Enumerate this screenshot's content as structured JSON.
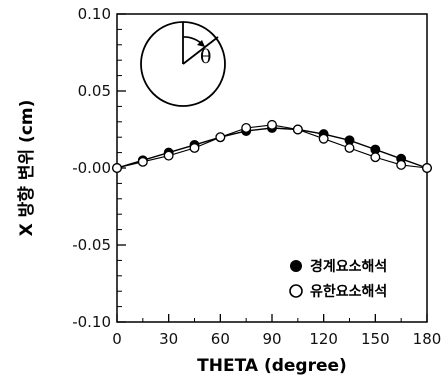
{
  "chart_data": {
    "type": "line",
    "xlabel": "THETA (degree)",
    "ylabel": "X 방향 변위 (cm)",
    "xlim": [
      0,
      180
    ],
    "ylim": [
      -0.1,
      0.1
    ],
    "x_ticks": [
      0,
      30,
      60,
      90,
      120,
      150,
      180
    ],
    "x_tick_labels": [
      "0",
      "30",
      "60",
      "90",
      "120",
      "150",
      "180"
    ],
    "y_ticks": [
      0.1,
      0.05,
      0.0,
      -0.05,
      -0.1
    ],
    "y_tick_labels": [
      "0.10",
      "0.05",
      "-0.00",
      "-0.05",
      "-0.10"
    ],
    "grid": false,
    "legend_position": "bottom-right",
    "inset_label": "θ",
    "series": [
      {
        "name": "경계요소해석",
        "marker": "filled-circle",
        "x": [
          0,
          15,
          30,
          45,
          60,
          75,
          90,
          105,
          120,
          135,
          150,
          165,
          180
        ],
        "y": [
          0.0,
          0.005,
          0.01,
          0.015,
          0.02,
          0.024,
          0.026,
          0.025,
          0.022,
          0.018,
          0.012,
          0.006,
          0.0
        ]
      },
      {
        "name": "유한요소해석",
        "marker": "open-circle",
        "x": [
          0,
          15,
          30,
          45,
          60,
          75,
          90,
          105,
          120,
          135,
          150,
          165,
          180
        ],
        "y": [
          0.0,
          0.004,
          0.008,
          0.013,
          0.02,
          0.026,
          0.028,
          0.025,
          0.019,
          0.013,
          0.007,
          0.002,
          0.0
        ]
      }
    ]
  }
}
